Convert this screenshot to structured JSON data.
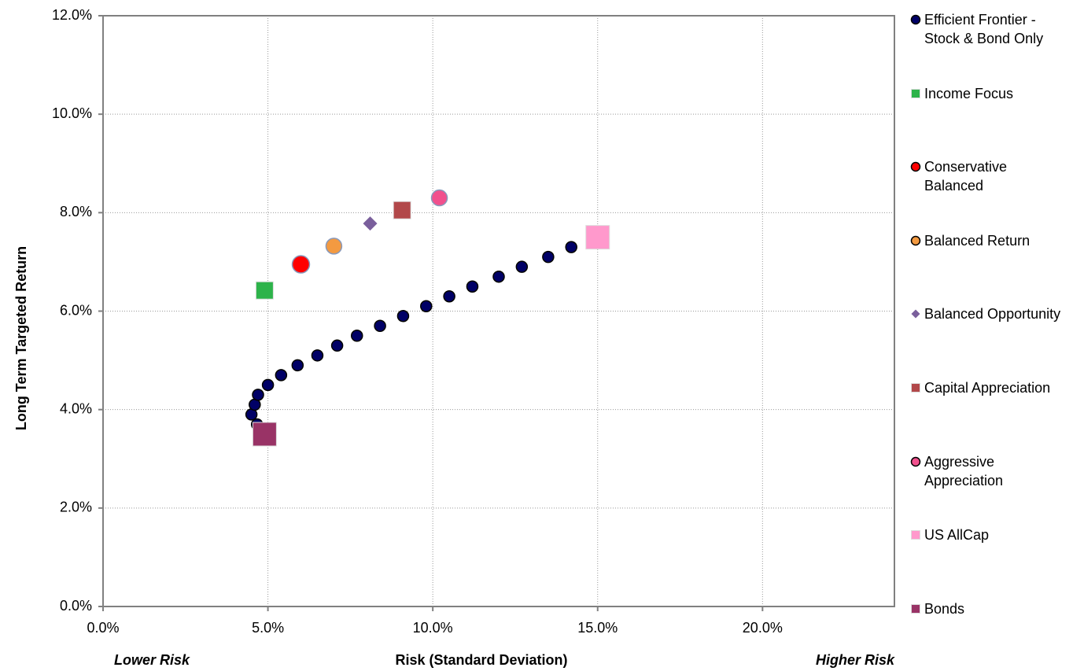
{
  "chart_data": {
    "type": "scatter",
    "x_label": "Risk (Standard Deviation)",
    "y_label": "Long Term Targeted Return",
    "annotations": [
      "Lower Risk",
      "Higher Risk"
    ],
    "xlim": [
      0,
      24
    ],
    "ylim": [
      0,
      12
    ],
    "xticks": [
      {
        "value": 0,
        "label": "0.0%"
      },
      {
        "value": 5,
        "label": "5.0%"
      },
      {
        "value": 10,
        "label": "10.0%"
      },
      {
        "value": 15,
        "label": "15.0%"
      },
      {
        "value": 20,
        "label": "20.0%"
      }
    ],
    "yticks": [
      {
        "value": 0,
        "label": "0.0%"
      },
      {
        "value": 2,
        "label": "2.0%"
      },
      {
        "value": 4,
        "label": "4.0%"
      },
      {
        "value": 6,
        "label": "6.0%"
      },
      {
        "value": 8,
        "label": "8.0%"
      },
      {
        "value": 10,
        "label": "10.0%"
      },
      {
        "value": 12,
        "label": "12.0%"
      }
    ],
    "grid": true,
    "legend": "right",
    "series": [
      {
        "name": "Efficient Frontier - Stock & Bond Only",
        "color": "#000066",
        "marker": "circle",
        "x": [
          4.67,
          4.5,
          4.6,
          4.7,
          5.0,
          5.4,
          5.9,
          6.5,
          7.1,
          7.7,
          8.4,
          9.1,
          9.8,
          10.5,
          11.2,
          12.0,
          12.7,
          13.5,
          14.2
        ],
        "values": [
          3.7,
          3.9,
          4.1,
          4.3,
          4.5,
          4.7,
          4.9,
          5.1,
          5.3,
          5.5,
          5.7,
          5.9,
          6.1,
          6.3,
          6.5,
          6.7,
          6.9,
          7.1,
          7.3
        ]
      },
      {
        "name": "Income Focus",
        "color": "#2db34a",
        "marker": "square",
        "x": [
          4.9
        ],
        "values": [
          6.42
        ]
      },
      {
        "name": "Conservative Balanced",
        "color": "#ff0000",
        "marker": "circle",
        "x": [
          6.0
        ],
        "values": [
          6.95
        ]
      },
      {
        "name": "Balanced Return",
        "color": "#f39a41",
        "marker": "circle",
        "x": [
          7.0
        ],
        "values": [
          7.32
        ]
      },
      {
        "name": "Balanced Opportunity",
        "color": "#7a5f9c",
        "marker": "diamond",
        "x": [
          8.1
        ],
        "values": [
          7.78
        ]
      },
      {
        "name": "Capital Appreciation",
        "color": "#b2484a",
        "marker": "square",
        "x": [
          9.07
        ],
        "values": [
          8.05
        ]
      },
      {
        "name": "Aggressive Appreciation",
        "color": "#f1508d",
        "marker": "circle",
        "x": [
          10.2
        ],
        "values": [
          8.3
        ]
      },
      {
        "name": "US AllCap",
        "color": "#ff99cc",
        "marker": "square",
        "x": [
          15.0
        ],
        "values": [
          7.5
        ]
      },
      {
        "name": "Bonds",
        "color": "#993366",
        "marker": "square",
        "x": [
          4.9
        ],
        "values": [
          3.5
        ]
      }
    ]
  }
}
